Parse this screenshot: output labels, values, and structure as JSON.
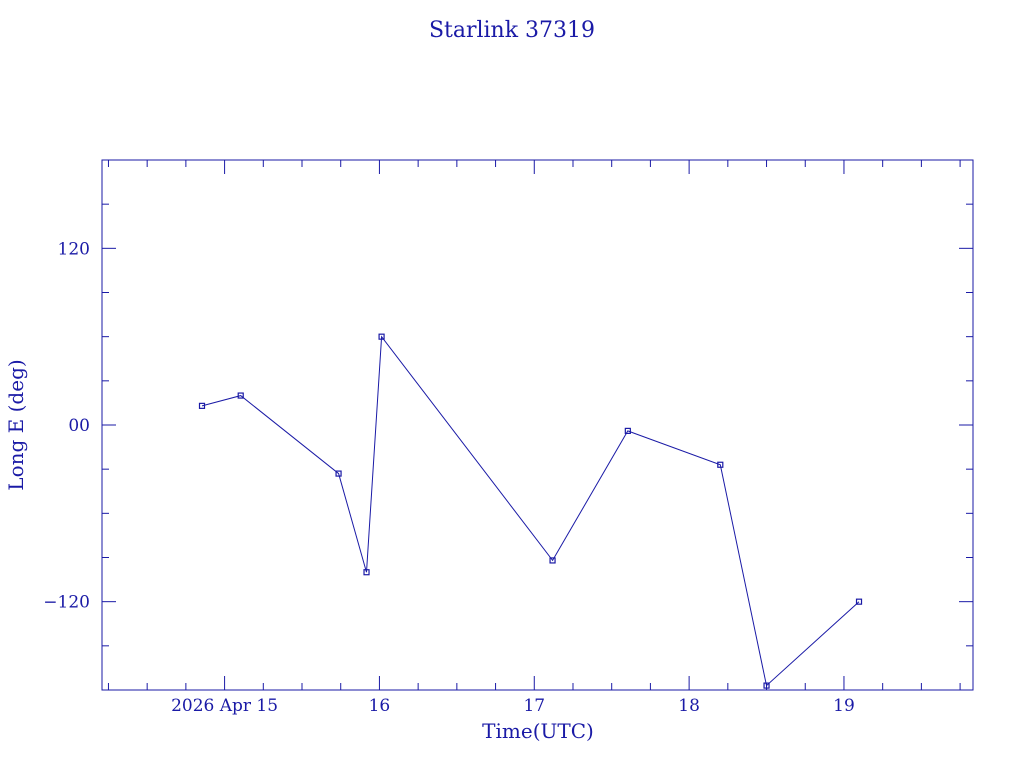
{
  "chart_data": {
    "type": "line",
    "title": "Starlink 37319",
    "xlabel": "Time(UTC)",
    "ylabel": "Long E (deg)",
    "color": "#1a1aa6",
    "grid": false,
    "x_ticks": [
      {
        "value": "2026-04-15T00:00",
        "label": "2026 Apr 15"
      },
      {
        "value": "2026-04-16T00:00",
        "label": "16"
      },
      {
        "value": "2026-04-17T00:00",
        "label": "17"
      },
      {
        "value": "2026-04-18T00:00",
        "label": "18"
      },
      {
        "value": "2026-04-19T00:00",
        "label": "19"
      }
    ],
    "y_ticks": [
      {
        "value": 120,
        "label": "120"
      },
      {
        "value": 0,
        "label": "00"
      },
      {
        "value": -120,
        "label": "−120"
      }
    ],
    "xlim": [
      "2026-04-14T05:00",
      "2026-04-19T20:00"
    ],
    "ylim": [
      -180,
      180
    ],
    "series": [
      {
        "x": [
          "2026-04-14T20:30",
          "2026-04-15T02:30",
          "2026-04-15T17:40",
          "2026-04-15T22:00",
          "2026-04-16T00:20",
          "2026-04-17T02:50",
          "2026-04-17T14:30",
          "2026-04-18T04:50",
          "2026-04-18T12:00",
          "2026-04-19T02:20"
        ],
        "y": [
          13,
          20,
          -33,
          -100,
          60,
          -92,
          -4,
          -27,
          -177,
          -120
        ]
      }
    ]
  }
}
